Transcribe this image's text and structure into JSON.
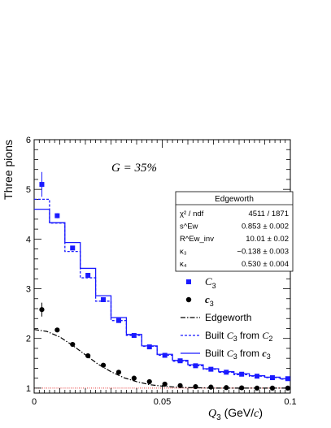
{
  "chart_data": {
    "type": "scatter",
    "annotation": "G = 35%",
    "xlabel_var": "Q",
    "xlabel_sub": "3",
    "xlabel_unit_open": " (GeV/",
    "xlabel_unit_c": "c",
    "xlabel_unit_close": ")",
    "ylabel": "Three pions",
    "xlim": [
      0,
      0.1
    ],
    "ylim": [
      0.9,
      6
    ],
    "x_ticks": [
      0,
      0.05,
      0.1
    ],
    "x_tick_labels": [
      "0",
      "0.05",
      "0.1"
    ],
    "y_ticks": [
      1,
      2,
      3,
      4,
      5,
      6
    ],
    "y_tick_labels": [
      "1",
      "2",
      "3",
      "4",
      "5",
      "6"
    ],
    "reference_line": {
      "y": 1.0,
      "color": "#e53030"
    },
    "stats_box": {
      "title": "Edgeworth",
      "rows": [
        {
          "label": "χ² / ndf",
          "value": "4511 / 1871"
        },
        {
          "label": "s^Ew",
          "value": "0.853 ± 0.002"
        },
        {
          "label": "R^Ew_inv",
          "value": "10.01 ± 0.02"
        },
        {
          "label": "κ₃",
          "value": "−0.138 ± 0.003"
        },
        {
          "label": "κ₄",
          "value": "0.530 ± 0.004"
        }
      ]
    },
    "bin_edges": [
      0,
      0.006,
      0.012,
      0.018,
      0.024,
      0.03,
      0.036,
      0.042,
      0.048,
      0.054,
      0.06,
      0.066,
      0.072,
      0.078,
      0.084,
      0.09,
      0.096,
      0.1
    ],
    "series": [
      {
        "name": "C3",
        "name_var": "C",
        "name_sub": "3",
        "style": "square",
        "color": "#1a1aff",
        "x": [
          0.003,
          0.009,
          0.015,
          0.021,
          0.027,
          0.033,
          0.039,
          0.045,
          0.051,
          0.057,
          0.063,
          0.069,
          0.075,
          0.081,
          0.087,
          0.093,
          0.099
        ],
        "y": [
          5.1,
          4.47,
          3.82,
          3.27,
          2.78,
          2.36,
          2.06,
          1.83,
          1.66,
          1.55,
          1.45,
          1.38,
          1.32,
          1.28,
          1.24,
          1.21,
          1.19
        ],
        "err_low": [
          0.25,
          0.05,
          0.03,
          0.02,
          0.02,
          0.01,
          0.01,
          0.01,
          0.01,
          0.01,
          0.01,
          0.01,
          0.01,
          0.01,
          0.01,
          0.01,
          0.01
        ],
        "err_high": [
          0.25,
          0.05,
          0.03,
          0.02,
          0.02,
          0.01,
          0.01,
          0.01,
          0.01,
          0.01,
          0.01,
          0.01,
          0.01,
          0.01,
          0.01,
          0.01,
          0.01
        ]
      },
      {
        "name": "c3",
        "name_var": "c",
        "name_sub": "3",
        "style": "circle",
        "color": "#000000",
        "x": [
          0.003,
          0.009,
          0.015,
          0.021,
          0.027,
          0.033,
          0.039,
          0.045,
          0.051,
          0.057,
          0.063,
          0.069,
          0.075,
          0.081,
          0.087,
          0.093,
          0.099
        ],
        "y": [
          2.58,
          2.17,
          1.88,
          1.65,
          1.46,
          1.32,
          1.2,
          1.13,
          1.08,
          1.05,
          1.03,
          1.02,
          1.01,
          1.005,
          1.0,
          1.0,
          1.0
        ],
        "err_low": [
          0.14,
          0.02,
          0.01,
          0.01,
          0.01,
          0.01,
          0.01,
          0.01,
          0.01,
          0.01,
          0.01,
          0.01,
          0.01,
          0.01,
          0.01,
          0.01,
          0.01
        ],
        "err_high": [
          0.14,
          0.02,
          0.01,
          0.01,
          0.01,
          0.01,
          0.01,
          0.01,
          0.01,
          0.01,
          0.01,
          0.01,
          0.01,
          0.01,
          0.01,
          0.01,
          0.01
        ]
      },
      {
        "name": "Edgeworth",
        "style": "dash-dot",
        "color": "#000000",
        "x": [
          0.0,
          0.005,
          0.01,
          0.015,
          0.02,
          0.025,
          0.03,
          0.035,
          0.04,
          0.045,
          0.05,
          0.055,
          0.06,
          0.065,
          0.07,
          0.075,
          0.08,
          0.085,
          0.09,
          0.095,
          0.1
        ],
        "y": [
          2.18,
          2.14,
          2.03,
          1.86,
          1.67,
          1.48,
          1.33,
          1.21,
          1.13,
          1.07,
          1.04,
          1.02,
          1.01,
          1.005,
          1.0,
          1.0,
          1.0,
          1.0,
          1.0,
          1.0,
          1.0
        ]
      },
      {
        "name": "Built C3 from C2",
        "style": "step-dotted",
        "color": "#1a1aff",
        "values": [
          4.8,
          4.32,
          3.75,
          3.22,
          2.75,
          2.36,
          2.06,
          1.84,
          1.66,
          1.54,
          1.45,
          1.38,
          1.32,
          1.27,
          1.24,
          1.21,
          1.18
        ]
      },
      {
        "name": "Built C3 from c3",
        "style": "step-solid",
        "color": "#1a1aff",
        "values": [
          4.6,
          4.33,
          3.93,
          3.41,
          2.86,
          2.42,
          2.08,
          1.85,
          1.68,
          1.56,
          1.47,
          1.39,
          1.33,
          1.29,
          1.25,
          1.22,
          1.19
        ]
      }
    ],
    "legend": {
      "placement": "right",
      "built_prefix": "Built ",
      "built_var": "C",
      "built_sub": "3",
      "built_from": " from ",
      "item3_var": "C",
      "item3_sub": "2",
      "item4_var": "c",
      "item4_sub": "3"
    }
  }
}
